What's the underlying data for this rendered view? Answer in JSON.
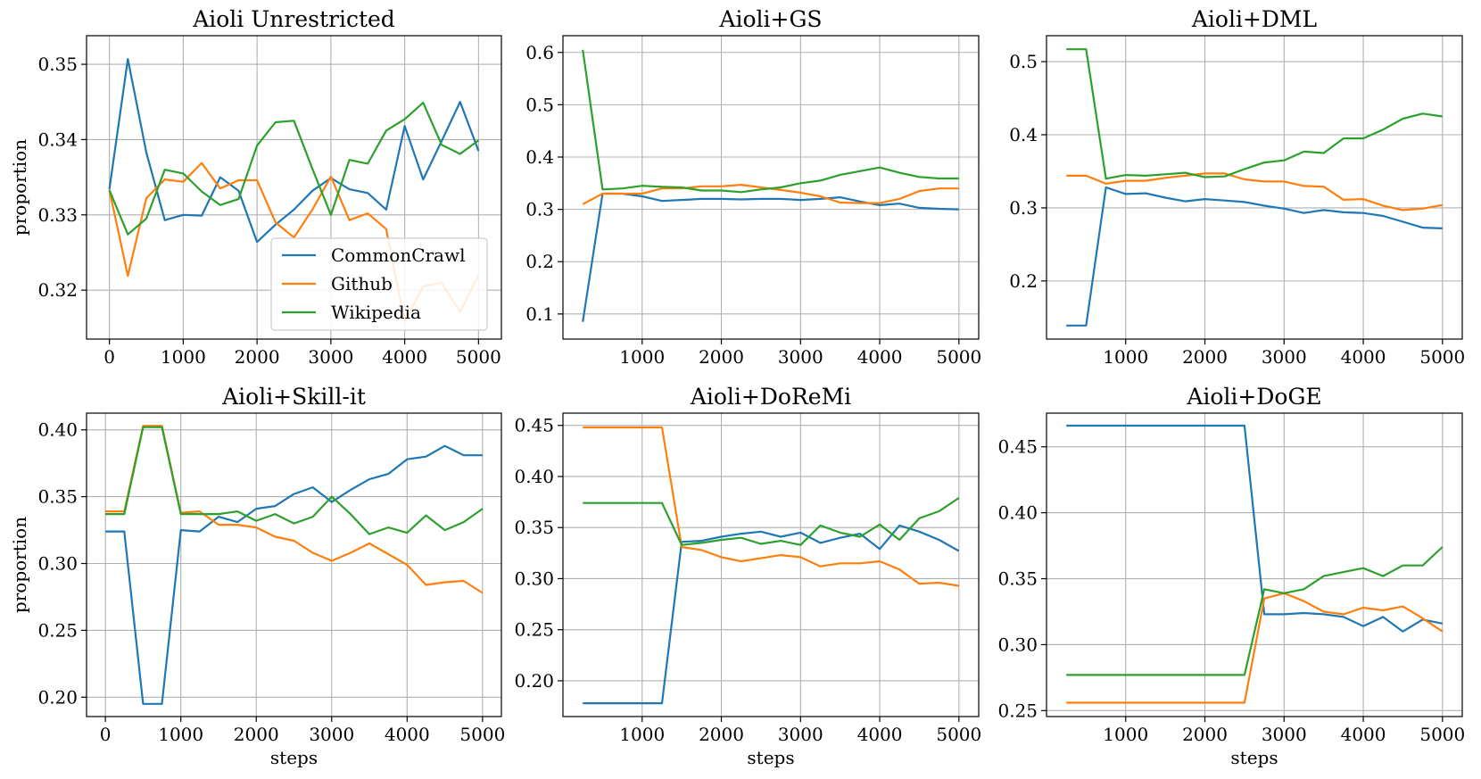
{
  "colors": {
    "CommonCrawl": "#1f77b4",
    "Github": "#ff7f0e",
    "Wikipedia": "#2ca02c",
    "grid": "#b0b0b0"
  },
  "chart_data": [
    {
      "type": "line",
      "title": "Aioli Unrestricted",
      "xlabel": "",
      "ylabel": "proportion",
      "xlim": [
        -310,
        5310
      ],
      "ylim": [
        0.3135,
        0.3538
      ],
      "xticks": [
        0,
        1000,
        2000,
        3000,
        4000,
        5000
      ],
      "xtick_labels": [
        "0",
        "1000",
        "2000",
        "3000",
        "4000",
        "5000"
      ],
      "yticks": [
        0.32,
        0.33,
        0.34,
        0.35
      ],
      "ytick_labels": [
        "0.32",
        "0.33",
        "0.34",
        "0.35"
      ],
      "legend": {
        "position": "lower-right",
        "entries": [
          "CommonCrawl",
          "Github",
          "Wikipedia"
        ]
      },
      "x": [
        0,
        250,
        500,
        750,
        1000,
        1250,
        1500,
        1750,
        2000,
        2250,
        2500,
        2750,
        3000,
        3250,
        3500,
        3750,
        4000,
        4250,
        4500,
        4750,
        5000
      ],
      "series": [
        {
          "name": "CommonCrawl",
          "values": [
            0.3334,
            0.3507,
            0.3383,
            0.3293,
            0.33,
            0.3299,
            0.335,
            0.3332,
            0.3264,
            0.3287,
            0.3307,
            0.3332,
            0.3349,
            0.3334,
            0.3329,
            0.3307,
            0.3418,
            0.3347,
            0.3398,
            0.345,
            0.3385
          ]
        },
        {
          "name": "Github",
          "values": [
            0.3333,
            0.3219,
            0.3322,
            0.3347,
            0.3344,
            0.3369,
            0.3335,
            0.3346,
            0.3346,
            0.329,
            0.327,
            0.3307,
            0.3351,
            0.3293,
            0.3302,
            0.3281,
            0.3158,
            0.3205,
            0.321,
            0.3171,
            0.322
          ]
        },
        {
          "name": "Wikipedia",
          "values": [
            0.3333,
            0.3274,
            0.3295,
            0.336,
            0.3355,
            0.3331,
            0.3313,
            0.3321,
            0.3392,
            0.3423,
            0.3425,
            0.3361,
            0.33,
            0.3373,
            0.3368,
            0.3412,
            0.3427,
            0.3449,
            0.3393,
            0.3381,
            0.3399
          ]
        }
      ]
    },
    {
      "type": "line",
      "title": "Aioli+GS",
      "xlabel": "",
      "ylabel": "",
      "xlim": [
        0,
        5250
      ],
      "ylim": [
        0.052,
        0.632
      ],
      "xticks": [
        1000,
        2000,
        3000,
        4000,
        5000
      ],
      "xtick_labels": [
        "1000",
        "2000",
        "3000",
        "4000",
        "5000"
      ],
      "yticks": [
        0.1,
        0.2,
        0.3,
        0.4,
        0.5,
        0.6
      ],
      "ytick_labels": [
        "0.1",
        "0.2",
        "0.3",
        "0.4",
        "0.5",
        "0.6"
      ],
      "x": [
        250,
        500,
        750,
        1000,
        1250,
        1500,
        1750,
        2000,
        2250,
        2500,
        2750,
        3000,
        3250,
        3500,
        3750,
        4000,
        4250,
        4500,
        4750,
        5000
      ],
      "series": [
        {
          "name": "CommonCrawl",
          "values": [
            0.085,
            0.33,
            0.33,
            0.325,
            0.316,
            0.318,
            0.32,
            0.32,
            0.319,
            0.32,
            0.32,
            0.318,
            0.32,
            0.323,
            0.315,
            0.308,
            0.311,
            0.303,
            0.301,
            0.3
          ]
        },
        {
          "name": "Github",
          "values": [
            0.31,
            0.33,
            0.33,
            0.33,
            0.34,
            0.34,
            0.344,
            0.344,
            0.347,
            0.342,
            0.337,
            0.332,
            0.325,
            0.313,
            0.312,
            0.312,
            0.32,
            0.335,
            0.34,
            0.34
          ]
        },
        {
          "name": "Wikipedia",
          "values": [
            0.605,
            0.338,
            0.34,
            0.345,
            0.343,
            0.342,
            0.336,
            0.336,
            0.333,
            0.338,
            0.342,
            0.35,
            0.355,
            0.366,
            0.373,
            0.38,
            0.37,
            0.362,
            0.359,
            0.359
          ]
        }
      ]
    },
    {
      "type": "line",
      "title": "Aioli+DML",
      "xlabel": "",
      "ylabel": "",
      "xlim": [
        0,
        5250
      ],
      "ylim": [
        0.1205,
        0.5355
      ],
      "xticks": [
        1000,
        2000,
        3000,
        4000,
        5000
      ],
      "xtick_labels": [
        "1000",
        "2000",
        "3000",
        "4000",
        "5000"
      ],
      "yticks": [
        0.2,
        0.3,
        0.4,
        0.5
      ],
      "ytick_labels": [
        "0.2",
        "0.3",
        "0.4",
        "0.5"
      ],
      "x": [
        250,
        500,
        750,
        1000,
        1250,
        1500,
        1750,
        2000,
        2250,
        2500,
        2750,
        3000,
        3250,
        3500,
        3750,
        4000,
        4250,
        4500,
        4750,
        5000
      ],
      "series": [
        {
          "name": "CommonCrawl",
          "values": [
            0.139,
            0.139,
            0.328,
            0.319,
            0.32,
            0.314,
            0.309,
            0.312,
            0.31,
            0.308,
            0.303,
            0.299,
            0.293,
            0.297,
            0.294,
            0.293,
            0.289,
            0.281,
            0.273,
            0.272
          ]
        },
        {
          "name": "Github",
          "values": [
            0.344,
            0.344,
            0.333,
            0.337,
            0.337,
            0.341,
            0.344,
            0.347,
            0.347,
            0.339,
            0.336,
            0.336,
            0.33,
            0.329,
            0.311,
            0.312,
            0.303,
            0.297,
            0.299,
            0.304
          ]
        },
        {
          "name": "Wikipedia",
          "values": [
            0.517,
            0.517,
            0.34,
            0.345,
            0.344,
            0.346,
            0.348,
            0.342,
            0.343,
            0.353,
            0.362,
            0.365,
            0.377,
            0.375,
            0.395,
            0.395,
            0.407,
            0.422,
            0.429,
            0.425
          ]
        }
      ]
    },
    {
      "type": "line",
      "title": "Aioli+Skill-it",
      "xlabel": "steps",
      "ylabel": "proportion",
      "xlim": [
        -250,
        5250
      ],
      "ylim": [
        0.1855,
        0.4125
      ],
      "xticks": [
        0,
        1000,
        2000,
        3000,
        4000,
        5000
      ],
      "xtick_labels": [
        "0",
        "1000",
        "2000",
        "3000",
        "4000",
        "5000"
      ],
      "yticks": [
        0.2,
        0.25,
        0.3,
        0.35,
        0.4
      ],
      "ytick_labels": [
        "0.20",
        "0.25",
        "0.30",
        "0.35",
        "0.40"
      ],
      "x": [
        0,
        250,
        500,
        750,
        1000,
        1250,
        1500,
        1750,
        2000,
        2250,
        2500,
        2750,
        3000,
        3250,
        3500,
        3750,
        4000,
        4250,
        4500,
        4750,
        5000
      ],
      "series": [
        {
          "name": "CommonCrawl",
          "values": [
            0.324,
            0.324,
            0.195,
            0.195,
            0.325,
            0.324,
            0.335,
            0.331,
            0.341,
            0.343,
            0.352,
            0.357,
            0.346,
            0.355,
            0.363,
            0.367,
            0.378,
            0.38,
            0.388,
            0.381,
            0.381
          ]
        },
        {
          "name": "Github",
          "values": [
            0.339,
            0.339,
            0.403,
            0.403,
            0.338,
            0.339,
            0.329,
            0.329,
            0.327,
            0.32,
            0.317,
            0.308,
            0.302,
            0.308,
            0.315,
            0.307,
            0.299,
            0.284,
            0.286,
            0.287,
            0.278
          ]
        },
        {
          "name": "Wikipedia",
          "values": [
            0.337,
            0.337,
            0.402,
            0.402,
            0.337,
            0.337,
            0.337,
            0.339,
            0.332,
            0.337,
            0.33,
            0.335,
            0.35,
            0.337,
            0.322,
            0.327,
            0.323,
            0.336,
            0.325,
            0.331,
            0.341
          ]
        }
      ]
    },
    {
      "type": "line",
      "title": "Aioli+DoReMi",
      "xlabel": "steps",
      "ylabel": "",
      "xlim": [
        0,
        5250
      ],
      "ylim": [
        0.165,
        0.462
      ],
      "xticks": [
        1000,
        2000,
        3000,
        4000,
        5000
      ],
      "xtick_labels": [
        "1000",
        "2000",
        "3000",
        "4000",
        "5000"
      ],
      "yticks": [
        0.2,
        0.25,
        0.3,
        0.35,
        0.4,
        0.45
      ],
      "ytick_labels": [
        "0.20",
        "0.25",
        "0.30",
        "0.35",
        "0.40",
        "0.45"
      ],
      "x": [
        250,
        500,
        750,
        1000,
        1250,
        1500,
        1750,
        2000,
        2250,
        2500,
        2750,
        3000,
        3250,
        3500,
        3750,
        4000,
        4250,
        4500,
        4750,
        5000
      ],
      "series": [
        {
          "name": "CommonCrawl",
          "values": [
            0.178,
            0.178,
            0.178,
            0.178,
            0.178,
            0.336,
            0.337,
            0.341,
            0.344,
            0.346,
            0.341,
            0.345,
            0.335,
            0.34,
            0.344,
            0.329,
            0.352,
            0.346,
            0.338,
            0.327
          ]
        },
        {
          "name": "Github",
          "values": [
            0.448,
            0.448,
            0.448,
            0.448,
            0.448,
            0.331,
            0.328,
            0.321,
            0.317,
            0.32,
            0.323,
            0.321,
            0.312,
            0.315,
            0.315,
            0.317,
            0.309,
            0.295,
            0.296,
            0.293
          ]
        },
        {
          "name": "Wikipedia",
          "values": [
            0.374,
            0.374,
            0.374,
            0.374,
            0.374,
            0.333,
            0.335,
            0.338,
            0.34,
            0.334,
            0.337,
            0.333,
            0.352,
            0.345,
            0.341,
            0.353,
            0.338,
            0.359,
            0.366,
            0.379
          ]
        }
      ]
    },
    {
      "type": "line",
      "title": "Aioli+DoGE",
      "xlabel": "steps",
      "ylabel": "",
      "xlim": [
        0,
        5250
      ],
      "ylim": [
        0.2455,
        0.4755
      ],
      "xticks": [
        1000,
        2000,
        3000,
        4000,
        5000
      ],
      "xtick_labels": [
        "1000",
        "2000",
        "3000",
        "4000",
        "5000"
      ],
      "yticks": [
        0.25,
        0.3,
        0.35,
        0.4,
        0.45
      ],
      "ytick_labels": [
        "0.25",
        "0.30",
        "0.35",
        "0.40",
        "0.45"
      ],
      "x": [
        250,
        500,
        750,
        1000,
        1250,
        1500,
        1750,
        2000,
        2250,
        2500,
        2750,
        3000,
        3250,
        3500,
        3750,
        4000,
        4250,
        4500,
        4750,
        5000
      ],
      "series": [
        {
          "name": "CommonCrawl",
          "values": [
            0.466,
            0.466,
            0.466,
            0.466,
            0.466,
            0.466,
            0.466,
            0.466,
            0.466,
            0.466,
            0.323,
            0.323,
            0.324,
            0.323,
            0.321,
            0.314,
            0.321,
            0.31,
            0.319,
            0.316
          ]
        },
        {
          "name": "Github",
          "values": [
            0.256,
            0.256,
            0.256,
            0.256,
            0.256,
            0.256,
            0.256,
            0.256,
            0.256,
            0.256,
            0.335,
            0.339,
            0.333,
            0.325,
            0.323,
            0.328,
            0.326,
            0.329,
            0.32,
            0.31
          ]
        },
        {
          "name": "Wikipedia",
          "values": [
            0.277,
            0.277,
            0.277,
            0.277,
            0.277,
            0.277,
            0.277,
            0.277,
            0.277,
            0.277,
            0.342,
            0.339,
            0.342,
            0.352,
            0.355,
            0.358,
            0.352,
            0.36,
            0.36,
            0.374
          ]
        }
      ]
    }
  ]
}
